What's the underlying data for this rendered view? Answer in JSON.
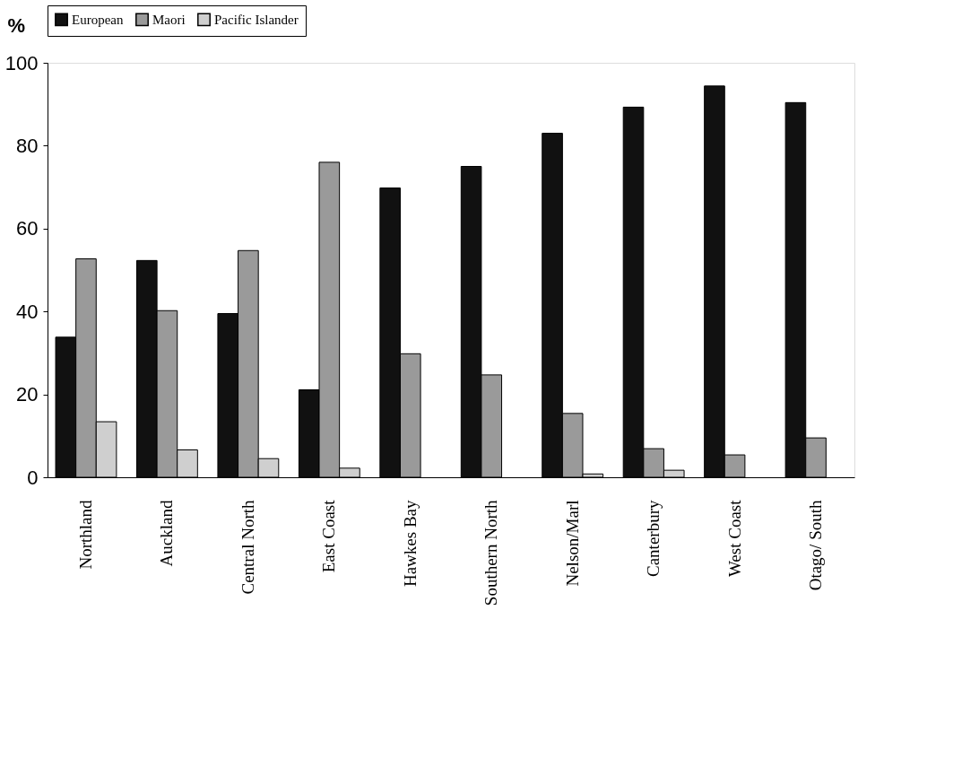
{
  "chart_data": {
    "type": "bar",
    "ylabel": "%",
    "categories": [
      "Northland",
      "Auckland",
      "Central North",
      "East Coast",
      "Hawkes Bay",
      "Southern North",
      "Nelson/Marl",
      "Canterbury",
      "West Coast",
      "Otago/ South"
    ],
    "series": [
      {
        "name": "European",
        "color": "#111111",
        "values": [
          33.8,
          52.3,
          39.5,
          21.1,
          69.8,
          75.0,
          83.0,
          89.3,
          94.4,
          90.4
        ]
      },
      {
        "name": "Maori",
        "color": "#9a9a9a",
        "values": [
          52.7,
          40.2,
          54.7,
          76.0,
          29.8,
          24.7,
          15.4,
          6.9,
          5.4,
          9.5
        ]
      },
      {
        "name": "Pacific Islander",
        "color": "#cfcfcf",
        "values": [
          13.4,
          6.6,
          4.5,
          2.2,
          null,
          null,
          0.8,
          1.7,
          null,
          null
        ]
      }
    ],
    "ylim": [
      0,
      100
    ],
    "yticks": [
      0,
      20,
      40,
      60,
      80,
      100
    ],
    "grid": false,
    "legend": "top"
  }
}
